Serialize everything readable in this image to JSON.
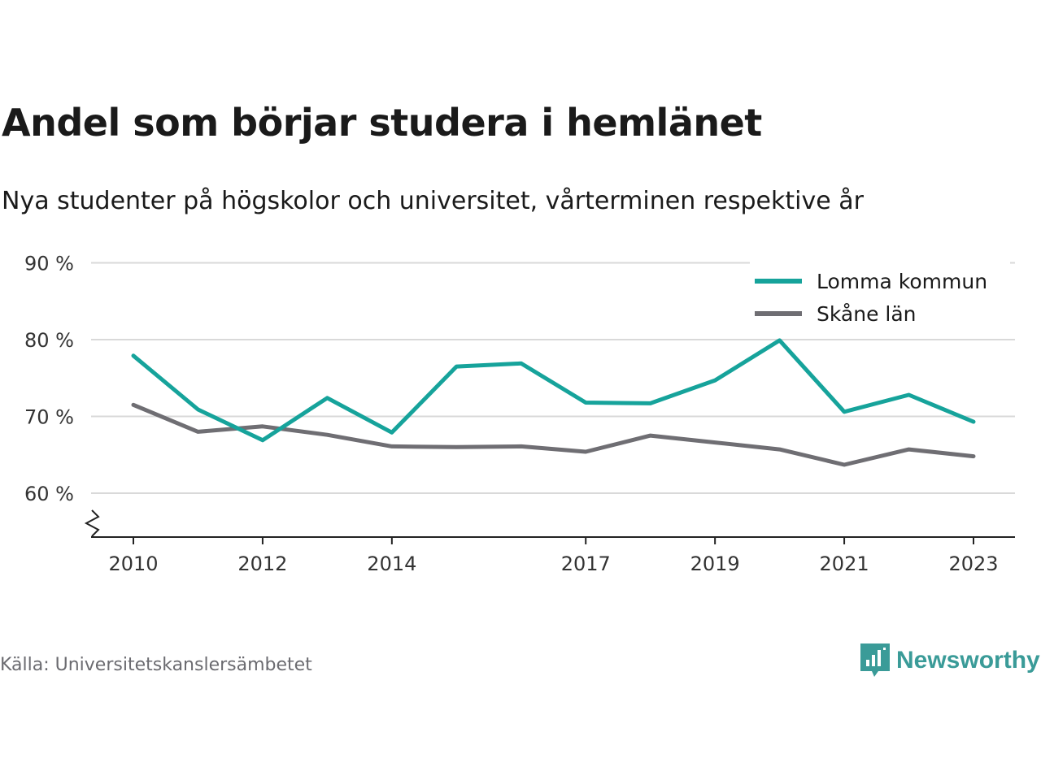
{
  "title": "Andel som börjar studera i hemlänet",
  "subtitle": "Nya studenter på högskolor och universitet, vårterminen respektive år",
  "source": "Källa: Universitetskanslersämbetet",
  "brand": {
    "name": "Newsworthy",
    "icon": "newsworthy-logo-icon",
    "color": "#3a9b98"
  },
  "chart_data": {
    "type": "line",
    "x": [
      2010,
      2011,
      2012,
      2013,
      2014,
      2015,
      2016,
      2017,
      2018,
      2019,
      2020,
      2021,
      2022,
      2023
    ],
    "x_ticks": [
      "2010",
      "2012",
      "2014",
      "2017",
      "2019",
      "2021",
      "2023"
    ],
    "y_ticks": [
      "60 %",
      "70 %",
      "80 %",
      "90 %"
    ],
    "ylim": [
      55,
      90
    ],
    "y_axis_break": true,
    "grid": true,
    "legend_position": "top-right",
    "series": [
      {
        "name": "Lomma kommun",
        "color": "#16a39b",
        "values": [
          77.9,
          70.9,
          66.9,
          72.4,
          67.9,
          76.5,
          76.9,
          71.8,
          71.7,
          74.7,
          79.9,
          70.6,
          72.8,
          69.3
        ]
      },
      {
        "name": "Skåne län",
        "color": "#6f6e73",
        "values": [
          71.5,
          68.0,
          68.7,
          67.6,
          66.1,
          66.0,
          66.1,
          65.4,
          67.5,
          66.6,
          65.7,
          63.7,
          65.7,
          64.8
        ]
      }
    ]
  }
}
